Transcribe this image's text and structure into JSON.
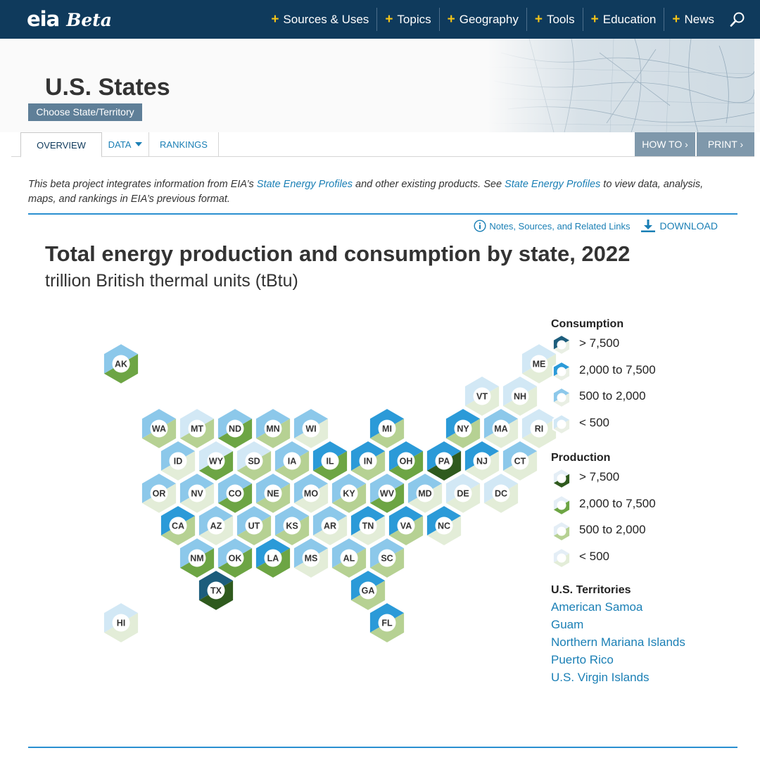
{
  "header": {
    "logo_text": "eia",
    "logo_sub": "Beta",
    "nav": [
      {
        "label": "Sources & Uses"
      },
      {
        "label": "Topics"
      },
      {
        "label": "Geography"
      },
      {
        "label": "Tools"
      },
      {
        "label": "Education"
      },
      {
        "label": "News"
      }
    ]
  },
  "banner": {
    "title": "U.S. States",
    "choose_button": "Choose State/Territory"
  },
  "tabs": {
    "overview": "OVERVIEW",
    "data": "DATA",
    "rankings": "RANKINGS",
    "how_to": "HOW TO ›",
    "print": "PRINT ›"
  },
  "intro": {
    "part1": "This beta project integrates information from EIA’s ",
    "link1": "State Energy Profiles",
    "part2": " and other existing products. See ",
    "link2": "State Energy Profiles",
    "part3": " to view data, analysis, maps, and rankings in EIA’s previous format."
  },
  "tools": {
    "notes": "Notes, Sources, and Related Links",
    "download": "DOWNLOAD"
  },
  "chart": {
    "title": "Total energy production and consumption by state, 2022",
    "subtitle": "trillion British thermal units (tBtu)"
  },
  "colors": {
    "cons": [
      "#d2e8f5",
      "#8cc8ea",
      "#2b9ad8",
      "#1c5d7c"
    ],
    "prod": [
      "#e3edd8",
      "#b6d193",
      "#6da544",
      "#2f5a1e"
    ]
  },
  "chart_data": {
    "type": "hex-tile-map",
    "title": "Total energy production and consumption by state, 2022",
    "units": "trillion British thermal units (tBtu)",
    "category_labels": [
      "< 500",
      "500 to 2,000",
      "2,000 to 7,500",
      "> 7,500"
    ],
    "states": [
      {
        "code": "AK",
        "col": 1,
        "row": 0,
        "cons": 1,
        "prod": 2
      },
      {
        "code": "ME",
        "col": 12,
        "row": 0,
        "cons": 0,
        "prod": 0
      },
      {
        "code": "VT",
        "col": 10.5,
        "row": 1,
        "cons": 0,
        "prod": 0
      },
      {
        "code": "NH",
        "col": 11.5,
        "row": 1,
        "cons": 0,
        "prod": 0
      },
      {
        "code": "WA",
        "col": 2,
        "row": 2,
        "cons": 1,
        "prod": 1
      },
      {
        "code": "MT",
        "col": 3,
        "row": 2,
        "cons": 0,
        "prod": 1
      },
      {
        "code": "ND",
        "col": 4,
        "row": 2,
        "cons": 1,
        "prod": 2
      },
      {
        "code": "MN",
        "col": 5,
        "row": 2,
        "cons": 1,
        "prod": 1
      },
      {
        "code": "WI",
        "col": 6,
        "row": 2,
        "cons": 1,
        "prod": 0
      },
      {
        "code": "MI",
        "col": 8,
        "row": 2,
        "cons": 2,
        "prod": 1
      },
      {
        "code": "NY",
        "col": 10,
        "row": 2,
        "cons": 2,
        "prod": 1
      },
      {
        "code": "MA",
        "col": 11,
        "row": 2,
        "cons": 1,
        "prod": 0
      },
      {
        "code": "RI",
        "col": 12,
        "row": 2,
        "cons": 0,
        "prod": 0
      },
      {
        "code": "ID",
        "col": 2.5,
        "row": 3,
        "cons": 1,
        "prod": 0
      },
      {
        "code": "WY",
        "col": 3.5,
        "row": 3,
        "cons": 0,
        "prod": 2
      },
      {
        "code": "SD",
        "col": 4.5,
        "row": 3,
        "cons": 0,
        "prod": 1
      },
      {
        "code": "IA",
        "col": 5.5,
        "row": 3,
        "cons": 1,
        "prod": 1
      },
      {
        "code": "IL",
        "col": 6.5,
        "row": 3,
        "cons": 2,
        "prod": 2
      },
      {
        "code": "IN",
        "col": 7.5,
        "row": 3,
        "cons": 2,
        "prod": 1
      },
      {
        "code": "OH",
        "col": 8.5,
        "row": 3,
        "cons": 2,
        "prod": 2
      },
      {
        "code": "PA",
        "col": 9.5,
        "row": 3,
        "cons": 2,
        "prod": 3
      },
      {
        "code": "NJ",
        "col": 10.5,
        "row": 3,
        "cons": 2,
        "prod": 0
      },
      {
        "code": "CT",
        "col": 11.5,
        "row": 3,
        "cons": 1,
        "prod": 0
      },
      {
        "code": "OR",
        "col": 2,
        "row": 4,
        "cons": 1,
        "prod": 0
      },
      {
        "code": "NV",
        "col": 3,
        "row": 4,
        "cons": 1,
        "prod": 0
      },
      {
        "code": "CO",
        "col": 4,
        "row": 4,
        "cons": 1,
        "prod": 2
      },
      {
        "code": "NE",
        "col": 5,
        "row": 4,
        "cons": 1,
        "prod": 1
      },
      {
        "code": "MO",
        "col": 6,
        "row": 4,
        "cons": 1,
        "prod": 0
      },
      {
        "code": "KY",
        "col": 7,
        "row": 4,
        "cons": 1,
        "prod": 1
      },
      {
        "code": "WV",
        "col": 8,
        "row": 4,
        "cons": 1,
        "prod": 2
      },
      {
        "code": "MD",
        "col": 9,
        "row": 4,
        "cons": 1,
        "prod": 0
      },
      {
        "code": "DE",
        "col": 10,
        "row": 4,
        "cons": 0,
        "prod": 0
      },
      {
        "code": "DC",
        "col": 11,
        "row": 4,
        "cons": 0,
        "prod": 0
      },
      {
        "code": "CA",
        "col": 2.5,
        "row": 5,
        "cons": 2,
        "prod": 1
      },
      {
        "code": "AZ",
        "col": 3.5,
        "row": 5,
        "cons": 1,
        "prod": 0
      },
      {
        "code": "UT",
        "col": 4.5,
        "row": 5,
        "cons": 1,
        "prod": 1
      },
      {
        "code": "KS",
        "col": 5.5,
        "row": 5,
        "cons": 1,
        "prod": 1
      },
      {
        "code": "AR",
        "col": 6.5,
        "row": 5,
        "cons": 1,
        "prod": 0
      },
      {
        "code": "TN",
        "col": 7.5,
        "row": 5,
        "cons": 2,
        "prod": 0
      },
      {
        "code": "VA",
        "col": 8.5,
        "row": 5,
        "cons": 2,
        "prod": 1
      },
      {
        "code": "NC",
        "col": 9.5,
        "row": 5,
        "cons": 2,
        "prod": 0
      },
      {
        "code": "NM",
        "col": 3,
        "row": 6,
        "cons": 1,
        "prod": 2
      },
      {
        "code": "OK",
        "col": 4,
        "row": 6,
        "cons": 1,
        "prod": 2
      },
      {
        "code": "LA",
        "col": 5,
        "row": 6,
        "cons": 2,
        "prod": 2
      },
      {
        "code": "MS",
        "col": 6,
        "row": 6,
        "cons": 1,
        "prod": 0
      },
      {
        "code": "AL",
        "col": 7,
        "row": 6,
        "cons": 1,
        "prod": 1
      },
      {
        "code": "SC",
        "col": 8,
        "row": 6,
        "cons": 1,
        "prod": 1
      },
      {
        "code": "TX",
        "col": 3.5,
        "row": 7,
        "cons": 3,
        "prod": 3
      },
      {
        "code": "GA",
        "col": 7.5,
        "row": 7,
        "cons": 2,
        "prod": 1
      },
      {
        "code": "HI",
        "col": 1,
        "row": 8,
        "cons": 0,
        "prod": 0
      },
      {
        "code": "FL",
        "col": 8,
        "row": 8,
        "cons": 2,
        "prod": 1
      }
    ]
  },
  "legend": {
    "consumption_title": "Consumption",
    "production_title": "Production",
    "cons_items": [
      "> 7,500",
      "2,000 to 7,500",
      "500 to 2,000",
      "< 500"
    ],
    "prod_items": [
      "> 7,500",
      "2,000 to 7,500",
      "500 to 2,000",
      "< 500"
    ],
    "territories_title": "U.S. Territories",
    "territories": [
      "American Samoa",
      "Guam",
      "Northern Mariana Islands",
      "Puerto Rico",
      "U.S. Virgin Islands"
    ]
  }
}
